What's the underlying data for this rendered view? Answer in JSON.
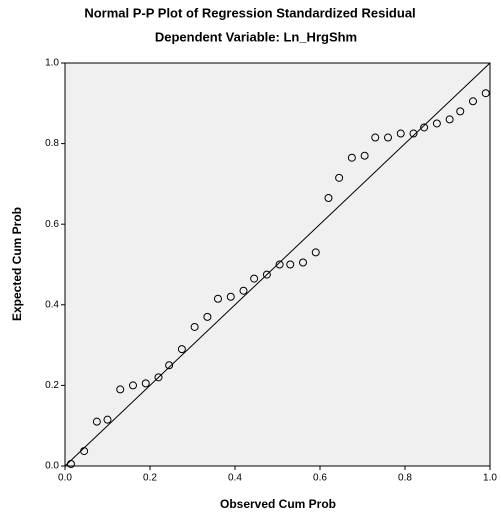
{
  "chart_data": {
    "type": "scatter",
    "title": "Normal P-P Plot of Regression Standardized Residual",
    "subtitle": "Dependent Variable: Ln_HrgShm",
    "x_label": "Observed Cum Prob",
    "y_label": "Expected Cum Prob",
    "x": [
      0.014,
      0.045,
      0.075,
      0.1,
      0.13,
      0.16,
      0.19,
      0.22,
      0.245,
      0.275,
      0.305,
      0.335,
      0.36,
      0.39,
      0.42,
      0.445,
      0.475,
      0.505,
      0.53,
      0.56,
      0.59,
      0.62,
      0.645,
      0.675,
      0.705,
      0.73,
      0.76,
      0.79,
      0.82,
      0.845,
      0.875,
      0.905,
      0.93,
      0.96,
      0.99
    ],
    "values": [
      0.005,
      0.037,
      0.11,
      0.115,
      0.19,
      0.2,
      0.205,
      0.22,
      0.25,
      0.29,
      0.345,
      0.37,
      0.415,
      0.42,
      0.435,
      0.465,
      0.475,
      0.5,
      0.5,
      0.505,
      0.53,
      0.665,
      0.715,
      0.765,
      0.77,
      0.815,
      0.815,
      0.825,
      0.825,
      0.84,
      0.85,
      0.86,
      0.88,
      0.905,
      0.925
    ],
    "color": "#000000",
    "xlim": [
      0,
      1
    ],
    "ylim": [
      0,
      1
    ],
    "xticks": [
      {
        "value": 0,
        "label": "0.0"
      },
      0.2,
      0.4,
      0.6,
      0.8,
      {
        "value": 1,
        "label": "1.0"
      }
    ],
    "yticks": [
      {
        "value": 0,
        "label": "0.0"
      },
      0.2,
      0.4,
      0.6,
      0.8,
      {
        "value": 1,
        "label": "1.0"
      }
    ],
    "grid": false
  }
}
